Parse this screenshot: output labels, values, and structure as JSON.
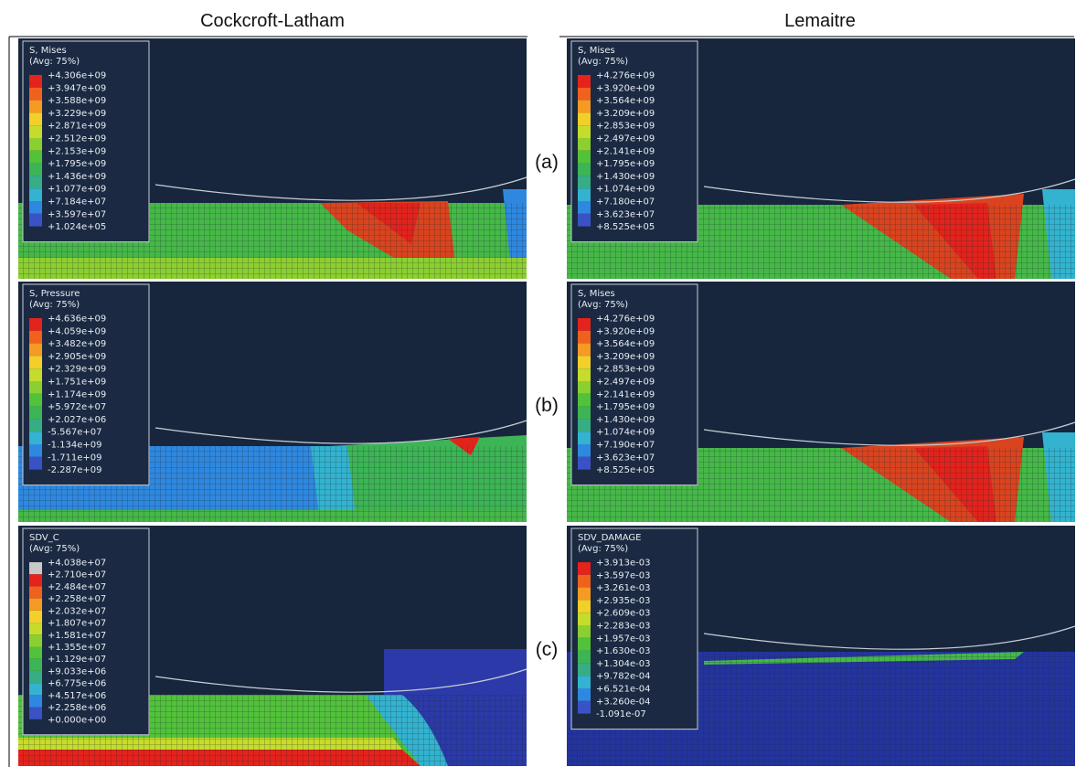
{
  "columns": [
    "Cockcroft-Latham",
    "Lemaitre"
  ],
  "rows": [
    {
      "label": "(a)",
      "panels": [
        {
          "title": "S, Mises",
          "avg": "(Avg: 75%)",
          "levels": [
            "+4.306e+09",
            "+3.947e+09",
            "+3.588e+09",
            "+3.229e+09",
            "+2.871e+09",
            "+2.512e+09",
            "+2.153e+09",
            "+1.795e+09",
            "+1.436e+09",
            "+1.077e+09",
            "+7.184e+07",
            "+3.597e+07",
            "+1.024e+05"
          ]
        },
        {
          "title": "S, Mises",
          "avg": "(Avg: 75%)",
          "levels": [
            "+4.276e+09",
            "+3.920e+09",
            "+3.564e+09",
            "+3.209e+09",
            "+2.853e+09",
            "+2.497e+09",
            "+2.141e+09",
            "+1.795e+09",
            "+1.430e+09",
            "+1.074e+09",
            "+7.180e+07",
            "+3.623e+07",
            "+8.525e+05"
          ]
        }
      ]
    },
    {
      "label": "(b)",
      "panels": [
        {
          "title": "S, Pressure",
          "avg": "(Avg: 75%)",
          "levels": [
            "+4.636e+09",
            "+4.059e+09",
            "+3.482e+09",
            "+2.905e+09",
            "+2.329e+09",
            "+1.751e+09",
            "+1.174e+09",
            "+5.972e+07",
            "+2.027e+06",
            "-5.567e+07",
            "-1.134e+09",
            "-1.711e+09",
            "-2.287e+09"
          ]
        },
        {
          "title": "S, Mises",
          "avg": "(Avg: 75%)",
          "levels": [
            "+4.276e+09",
            "+3.920e+09",
            "+3.564e+09",
            "+3.209e+09",
            "+2.853e+09",
            "+2.497e+09",
            "+2.141e+09",
            "+1.795e+09",
            "+1.430e+09",
            "+1.074e+09",
            "+7.190e+07",
            "+3.623e+07",
            "+8.525e+05"
          ]
        }
      ]
    },
    {
      "label": "(c)",
      "panels": [
        {
          "title": "SDV_C",
          "avg": "(Avg: 75%)",
          "levels": [
            "+4.038e+07",
            "+2.710e+07",
            "+2.484e+07",
            "+2.258e+07",
            "+2.032e+07",
            "+1.807e+07",
            "+1.581e+07",
            "+1.355e+07",
            "+1.129e+07",
            "+9.033e+06",
            "+6.775e+06",
            "+4.517e+06",
            "+2.258e+06",
            "+0.000e+00"
          ]
        },
        {
          "title": "SDV_DAMAGE",
          "avg": "(Avg: 75%)",
          "levels": [
            "+3.913e-03",
            "+3.597e-03",
            "+3.261e-03",
            "+2.935e-03",
            "+2.609e-03",
            "+2.283e-03",
            "+1.957e-03",
            "+1.630e-03",
            "+1.304e-03",
            "+9.782e-04",
            "+6.521e-04",
            "+3.260e-04",
            "-1.091e-07"
          ]
        }
      ]
    }
  ]
}
